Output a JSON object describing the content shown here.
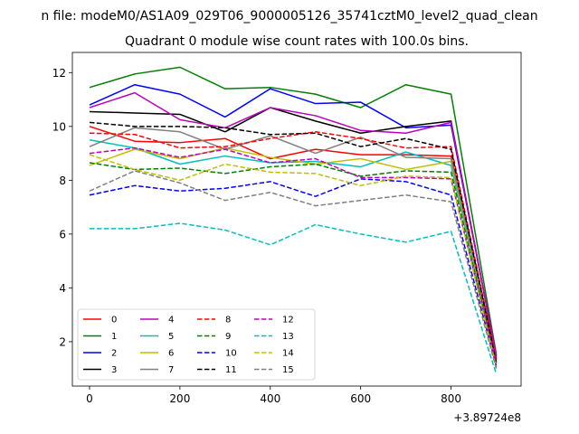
{
  "chart_data": {
    "type": "line",
    "suptitle": "n file: modeM0/AS1A09_029T06_9000005126_35741cztM0_level2_quad_clean",
    "title": "Quadrant 0 module wise count rates with 100.0s bins.",
    "xlabel": "",
    "ylabel": "",
    "x_offset_label": "+3.89724e8",
    "x": [
      0,
      100,
      200,
      300,
      400,
      500,
      600,
      700,
      800,
      900
    ],
    "xlim": [
      -38,
      955
    ],
    "ylim": [
      0.35,
      12.75
    ],
    "xticks": [
      0,
      200,
      400,
      600,
      800
    ],
    "xtick_labels": [
      "0",
      "200",
      "400",
      "600",
      "800"
    ],
    "yticks": [
      2,
      4,
      6,
      8,
      10,
      12
    ],
    "ytick_labels": [
      "2",
      "4",
      "6",
      "8",
      "10",
      "12"
    ],
    "legend_location": "lower-left",
    "legend_columns": 4,
    "series": [
      {
        "name": "0",
        "color": "#ff0000",
        "dash": "solid",
        "values": [
          10.0,
          9.45,
          9.4,
          9.55,
          8.8,
          9.15,
          8.95,
          8.95,
          8.9,
          1.4
        ]
      },
      {
        "name": "1",
        "color": "#008000",
        "dash": "solid",
        "values": [
          11.45,
          11.95,
          12.2,
          11.4,
          11.45,
          11.2,
          10.7,
          11.55,
          11.2,
          1.55
        ]
      },
      {
        "name": "2",
        "color": "#0000ff",
        "dash": "solid",
        "values": [
          10.8,
          11.55,
          11.2,
          10.35,
          11.4,
          10.85,
          10.9,
          9.95,
          10.05,
          1.5
        ]
      },
      {
        "name": "3",
        "color": "#000000",
        "dash": "solid",
        "values": [
          10.55,
          10.5,
          10.45,
          9.8,
          10.7,
          10.2,
          9.75,
          10.0,
          10.2,
          1.45
        ]
      },
      {
        "name": "4",
        "color": "#bf00bf",
        "dash": "solid",
        "values": [
          10.7,
          11.25,
          10.25,
          9.95,
          10.7,
          10.4,
          9.85,
          9.75,
          10.15,
          1.5
        ]
      },
      {
        "name": "5",
        "color": "#00bfbf",
        "dash": "solid",
        "values": [
          9.5,
          9.2,
          8.6,
          8.9,
          8.65,
          8.7,
          8.5,
          9.05,
          8.55,
          1.2
        ]
      },
      {
        "name": "6",
        "color": "#bfbf00",
        "dash": "solid",
        "values": [
          8.55,
          9.15,
          8.8,
          9.2,
          8.85,
          8.6,
          8.8,
          8.4,
          8.7,
          1.3
        ]
      },
      {
        "name": "7",
        "color": "#808080",
        "dash": "solid",
        "values": [
          9.25,
          9.95,
          9.8,
          9.15,
          9.65,
          9.0,
          9.6,
          8.85,
          8.8,
          1.35
        ]
      },
      {
        "name": "8",
        "color": "#ff0000",
        "dash": "dashed",
        "values": [
          9.75,
          9.7,
          9.2,
          9.25,
          9.55,
          9.8,
          9.55,
          9.2,
          9.25,
          1.35
        ]
      },
      {
        "name": "9",
        "color": "#008000",
        "dash": "dashed",
        "values": [
          8.65,
          8.4,
          8.45,
          8.25,
          8.5,
          8.6,
          8.15,
          8.35,
          8.3,
          1.2
        ]
      },
      {
        "name": "10",
        "color": "#0000ff",
        "dash": "dashed",
        "values": [
          7.45,
          7.8,
          7.6,
          7.7,
          7.95,
          7.4,
          8.05,
          7.95,
          7.45,
          1.1
        ]
      },
      {
        "name": "11",
        "color": "#000000",
        "dash": "dashed",
        "values": [
          10.15,
          10.0,
          10.0,
          9.95,
          9.7,
          9.75,
          9.25,
          9.55,
          9.15,
          1.25
        ]
      },
      {
        "name": "12",
        "color": "#bf00bf",
        "dash": "dashed",
        "values": [
          9.0,
          9.2,
          8.85,
          9.15,
          8.65,
          8.8,
          8.1,
          8.1,
          8.05,
          1.2
        ]
      },
      {
        "name": "13",
        "color": "#00bfbf",
        "dash": "dashed",
        "values": [
          6.2,
          6.2,
          6.4,
          6.15,
          5.6,
          6.35,
          6.0,
          5.7,
          6.1,
          0.8
        ]
      },
      {
        "name": "14",
        "color": "#bfbf00",
        "dash": "dashed",
        "values": [
          8.95,
          8.4,
          8.0,
          8.6,
          8.3,
          8.25,
          7.8,
          8.15,
          8.1,
          1.05
        ]
      },
      {
        "name": "15",
        "color": "#808080",
        "dash": "dashed",
        "values": [
          7.6,
          8.35,
          7.9,
          7.25,
          7.55,
          7.05,
          7.25,
          7.45,
          7.2,
          1.0
        ]
      }
    ]
  }
}
